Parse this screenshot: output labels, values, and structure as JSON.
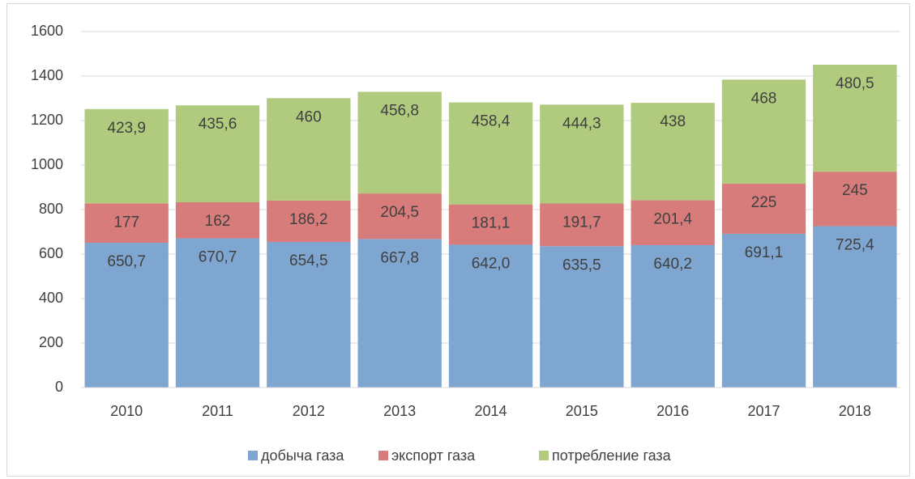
{
  "chart_data": {
    "type": "stacked_bar",
    "categories": [
      "2010",
      "2011",
      "2012",
      "2013",
      "2014",
      "2015",
      "2016",
      "2017",
      "2018"
    ],
    "series": [
      {
        "name": "добыча газа",
        "color": "#7fa6d1",
        "values": [
          650.7,
          670.7,
          654.5,
          667.8,
          642.0,
          635.5,
          640.2,
          691.1,
          725.4
        ],
        "value_labels": [
          "650,7",
          "670,7",
          "654,5",
          "667,8",
          "642,0",
          "635,5",
          "640,2",
          "691,1",
          "725,4"
        ]
      },
      {
        "name": "экспорт газа",
        "color": "#d77c7b",
        "values": [
          177,
          162,
          186.2,
          204.5,
          181.1,
          191.7,
          201.4,
          225,
          245
        ],
        "value_labels": [
          "177",
          "162",
          "186,2",
          "204,5",
          "181,1",
          "191,7",
          "201,4",
          "225",
          "245"
        ]
      },
      {
        "name": "потребление газа",
        "color": "#b0ca7e",
        "values": [
          423.9,
          435.6,
          460,
          456.8,
          458.4,
          444.3,
          438,
          468,
          480.5
        ],
        "value_labels": [
          "423,9",
          "435,6",
          "460",
          "456,8",
          "458,4",
          "444,3",
          "438",
          "468",
          "480,5"
        ]
      }
    ],
    "ylim": [
      0,
      1600
    ],
    "yticks": [
      0,
      200,
      400,
      600,
      800,
      1000,
      1200,
      1400,
      1600
    ],
    "grid": true,
    "legend": "bottom"
  }
}
